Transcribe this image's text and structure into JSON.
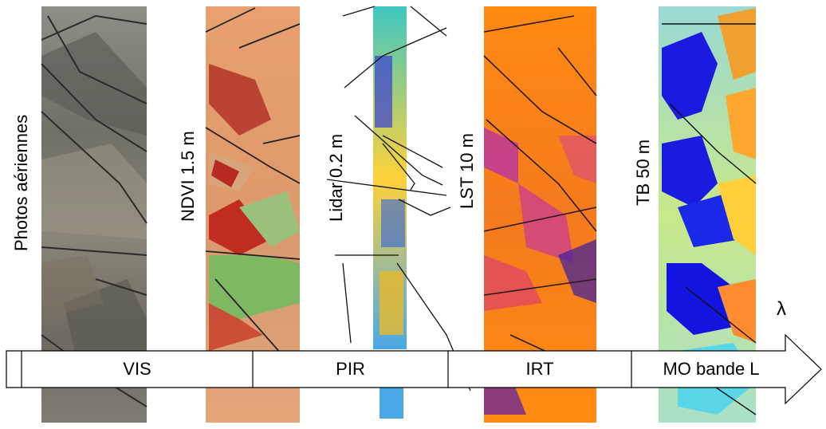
{
  "panels": [
    {
      "id": "photos",
      "label": "Photos aériennes"
    },
    {
      "id": "ndvi",
      "label": "NDVI 1.5 m"
    },
    {
      "id": "lidar",
      "label": "Lidar 0.2 m"
    },
    {
      "id": "lst",
      "label": "LST 10 m"
    },
    {
      "id": "tb",
      "label": "TB 50 m"
    }
  ],
  "spectrum": {
    "axis_symbol": "λ",
    "bands": [
      "VIS",
      "PIR",
      "IRT",
      "MO bande L"
    ]
  }
}
